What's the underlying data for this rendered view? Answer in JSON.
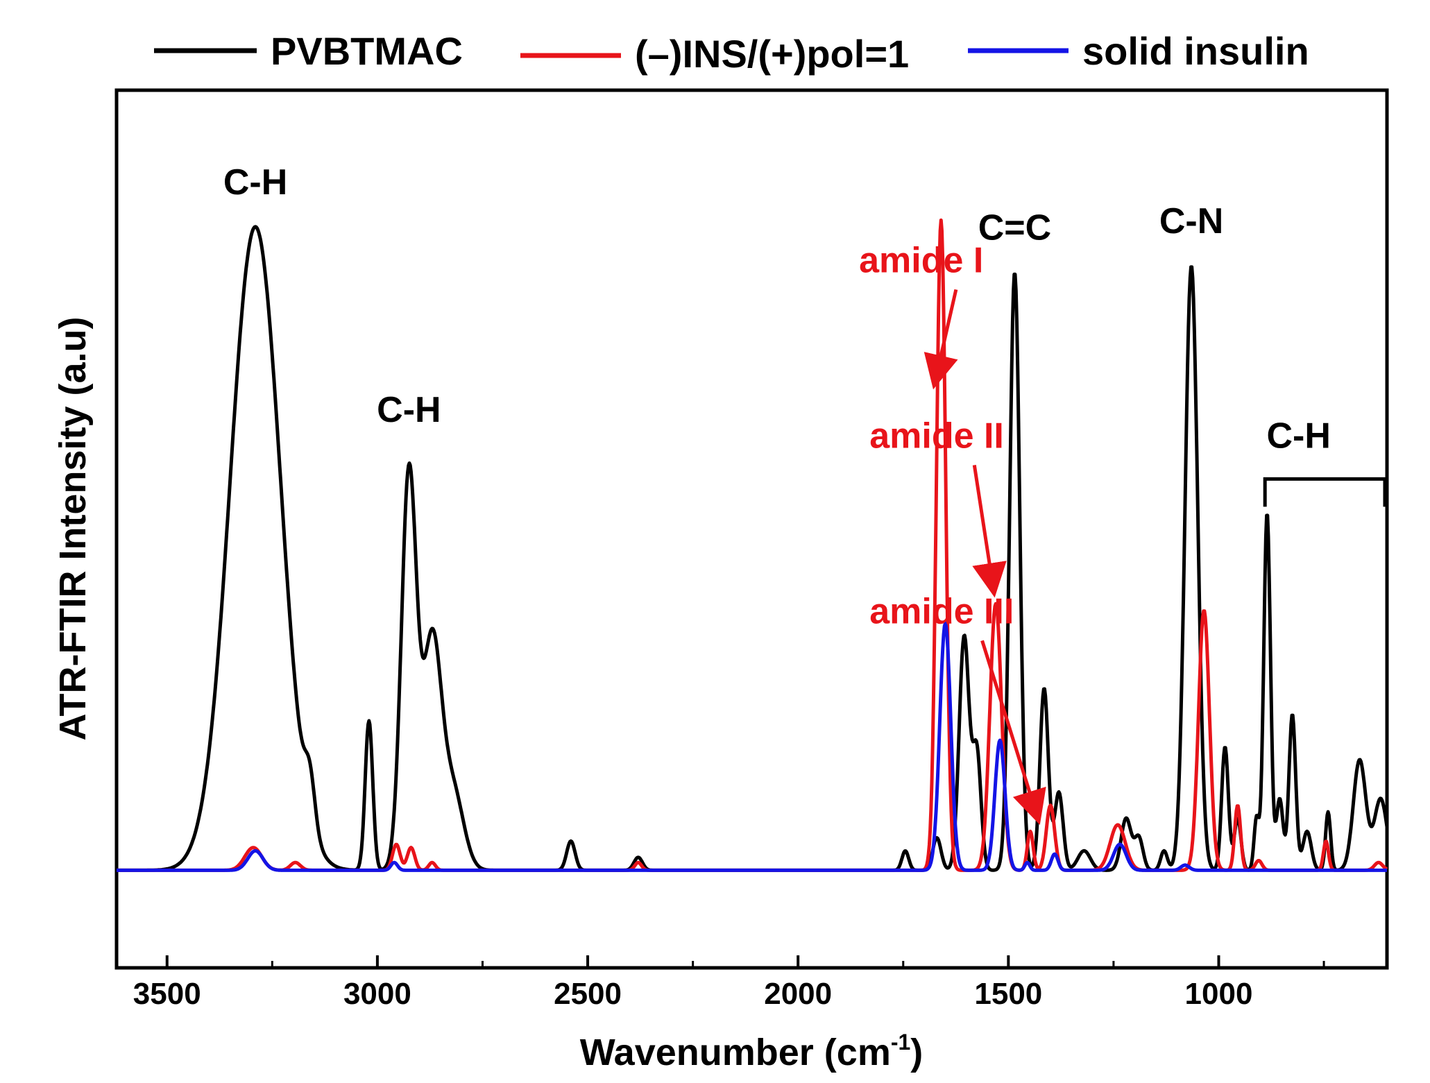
{
  "chart_data": {
    "type": "line",
    "title": "",
    "xlabel": "Wavenumber (cm",
    "xlabel_sup": "-1",
    "xlabel_close": ")",
    "ylabel": "ATR-FTIR Intensity (a.u)",
    "xlim": [
      3620,
      600
    ],
    "x_reversed": true,
    "ylim": [
      -0.15,
      1.2
    ],
    "y_ticks_shown": false,
    "x_ticks": [
      3500,
      3000,
      2500,
      2000,
      1500,
      1000
    ],
    "x_tick_labels": [
      "3500",
      "3000",
      "2500",
      "2000",
      "1500",
      "1000"
    ],
    "legend": {
      "placement": "top, above plot",
      "entries": [
        {
          "name": "PVBTMAC",
          "color": "#000000"
        },
        {
          "name": "(–)INS/(+)pol=1",
          "color": "#e8141a"
        },
        {
          "name": "solid insulin",
          "color": "#1414e6"
        }
      ]
    },
    "series": [
      {
        "name": "PVBTMAC",
        "color": "#000000",
        "baseline": 0.0,
        "peaks": [
          {
            "x": 3290,
            "h": 0.99,
            "w": 60
          },
          {
            "x": 3160,
            "h": 0.07,
            "w": 12
          },
          {
            "x": 3020,
            "h": 0.23,
            "w": 9
          },
          {
            "x": 2925,
            "h": 0.61,
            "w": 18
          },
          {
            "x": 2870,
            "h": 0.35,
            "w": 22
          },
          {
            "x": 2820,
            "h": 0.12,
            "w": 25
          },
          {
            "x": 2540,
            "h": 0.045,
            "w": 10
          },
          {
            "x": 2380,
            "h": 0.02,
            "w": 10
          },
          {
            "x": 1745,
            "h": 0.03,
            "w": 8
          },
          {
            "x": 1670,
            "h": 0.05,
            "w": 10
          },
          {
            "x": 1605,
            "h": 0.36,
            "w": 12
          },
          {
            "x": 1575,
            "h": 0.18,
            "w": 10
          },
          {
            "x": 1485,
            "h": 0.92,
            "w": 12
          },
          {
            "x": 1415,
            "h": 0.28,
            "w": 10
          },
          {
            "x": 1380,
            "h": 0.12,
            "w": 10
          },
          {
            "x": 1320,
            "h": 0.03,
            "w": 15
          },
          {
            "x": 1220,
            "h": 0.08,
            "w": 12
          },
          {
            "x": 1190,
            "h": 0.05,
            "w": 10
          },
          {
            "x": 1130,
            "h": 0.03,
            "w": 8
          },
          {
            "x": 1065,
            "h": 0.93,
            "w": 15
          },
          {
            "x": 985,
            "h": 0.19,
            "w": 8
          },
          {
            "x": 955,
            "h": 0.08,
            "w": 8
          },
          {
            "x": 910,
            "h": 0.08,
            "w": 6
          },
          {
            "x": 885,
            "h": 0.55,
            "w": 8
          },
          {
            "x": 855,
            "h": 0.11,
            "w": 8
          },
          {
            "x": 825,
            "h": 0.24,
            "w": 8
          },
          {
            "x": 790,
            "h": 0.06,
            "w": 10
          },
          {
            "x": 740,
            "h": 0.09,
            "w": 6
          },
          {
            "x": 665,
            "h": 0.17,
            "w": 15
          },
          {
            "x": 615,
            "h": 0.11,
            "w": 15
          }
        ]
      },
      {
        "name": "(–)INS/(+)pol=1",
        "color": "#e8141a",
        "baseline": 0.0,
        "peaks": [
          {
            "x": 3295,
            "h": 0.035,
            "w": 20
          },
          {
            "x": 3195,
            "h": 0.012,
            "w": 12
          },
          {
            "x": 2955,
            "h": 0.04,
            "w": 9
          },
          {
            "x": 2920,
            "h": 0.035,
            "w": 9
          },
          {
            "x": 2870,
            "h": 0.012,
            "w": 8
          },
          {
            "x": 2380,
            "h": 0.012,
            "w": 8
          },
          {
            "x": 1660,
            "h": 1.0,
            "w": 11
          },
          {
            "x": 1530,
            "h": 0.41,
            "w": 14
          },
          {
            "x": 1448,
            "h": 0.06,
            "w": 7
          },
          {
            "x": 1400,
            "h": 0.1,
            "w": 10
          },
          {
            "x": 1240,
            "h": 0.07,
            "w": 18
          },
          {
            "x": 1035,
            "h": 0.4,
            "w": 13
          },
          {
            "x": 955,
            "h": 0.1,
            "w": 7
          },
          {
            "x": 905,
            "h": 0.015,
            "w": 8
          },
          {
            "x": 745,
            "h": 0.045,
            "w": 6
          },
          {
            "x": 620,
            "h": 0.012,
            "w": 10
          }
        ]
      },
      {
        "name": "solid insulin",
        "color": "#1414e6",
        "baseline": 0.0,
        "peaks": [
          {
            "x": 3290,
            "h": 0.03,
            "w": 18
          },
          {
            "x": 2960,
            "h": 0.012,
            "w": 8
          },
          {
            "x": 1650,
            "h": 0.38,
            "w": 13
          },
          {
            "x": 1520,
            "h": 0.2,
            "w": 12
          },
          {
            "x": 1455,
            "h": 0.012,
            "w": 6
          },
          {
            "x": 1390,
            "h": 0.025,
            "w": 8
          },
          {
            "x": 1235,
            "h": 0.04,
            "w": 15
          },
          {
            "x": 1080,
            "h": 0.008,
            "w": 10
          }
        ]
      }
    ],
    "annotations": [
      {
        "text": "C-H",
        "x": 3290,
        "y": 1.04,
        "color": "#000000"
      },
      {
        "text": "C-H",
        "x": 2925,
        "y": 0.69,
        "color": "#000000"
      },
      {
        "text": "C=C",
        "x": 1485,
        "y": 0.97,
        "color": "#000000"
      },
      {
        "text": "C-N",
        "x": 1065,
        "y": 0.98,
        "color": "#000000"
      },
      {
        "text": "C-H",
        "x": 810,
        "y": 0.65,
        "color": "#000000",
        "bracket_from": 890,
        "bracket_to": 605
      },
      {
        "text": "amide I",
        "x": 1855,
        "y": 0.92,
        "color": "#e8141a",
        "arrow_to_x": 1675,
        "arrow_to_y": 0.75
      },
      {
        "text": "amide II",
        "x": 1830,
        "y": 0.65,
        "color": "#e8141a",
        "arrow_to_x": 1535,
        "arrow_to_y": 0.43
      },
      {
        "text": "amide III",
        "x": 1830,
        "y": 0.38,
        "color": "#e8141a",
        "arrow_to_x": 1430,
        "arrow_to_y": 0.08
      }
    ]
  }
}
